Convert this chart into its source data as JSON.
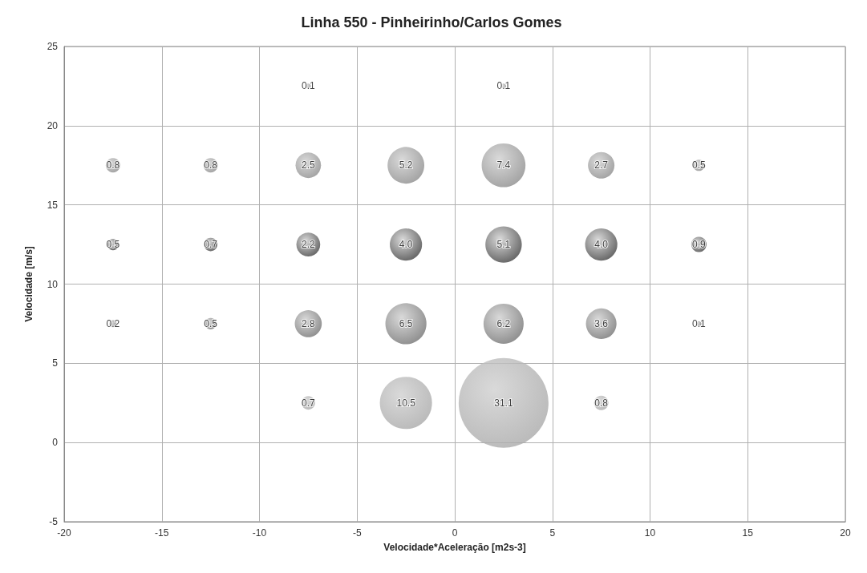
{
  "chart_data": {
    "type": "bubble",
    "title": "Linha 550 - Pinheirinho/Carlos Gomes",
    "xlabel": "Velocidade*Aceleração [m2s-3]",
    "ylabel": "Velocidade [m/s]",
    "x": [
      -7.5,
      2.5,
      -17.5,
      -12.5,
      -7.5,
      -2.5,
      2.5,
      7.5,
      12.5,
      -17.5,
      -12.5,
      -7.5,
      -2.5,
      2.5,
      7.5,
      12.5,
      -17.5,
      -12.5,
      -7.5,
      -2.5,
      2.5,
      7.5,
      12.5,
      -7.5,
      -2.5,
      2.5,
      7.5
    ],
    "values": [
      22.5,
      22.5,
      17.5,
      17.5,
      17.5,
      17.5,
      17.5,
      17.5,
      17.5,
      12.5,
      12.5,
      12.5,
      12.5,
      12.5,
      12.5,
      12.5,
      7.5,
      7.5,
      7.5,
      7.5,
      7.5,
      7.5,
      7.5,
      2.5,
      2.5,
      2.5,
      2.5
    ],
    "sizes": [
      0.1,
      0.1,
      0.8,
      0.8,
      2.5,
      5.2,
      7.4,
      2.7,
      0.5,
      0.5,
      0.7,
      2.2,
      4.0,
      5.1,
      4.0,
      0.9,
      0.2,
      0.5,
      2.8,
      6.5,
      6.2,
      3.6,
      0.1,
      0.7,
      10.5,
      31.1,
      0.8
    ],
    "value_labels": [
      "0.1",
      "0.1",
      "0.8",
      "0.8",
      "2.5",
      "5.2",
      "7.4",
      "2.7",
      "0.5",
      "0.5",
      "0.7",
      "2.2",
      "4.0",
      "5.1",
      "4.0",
      "0.9",
      "0.2",
      "0.5",
      "2.8",
      "6.5",
      "6.2",
      "3.6",
      "0.1",
      "0.7",
      "10.5",
      "31.1",
      "0.8"
    ],
    "colors": [
      "#8a8a8a",
      "#8a8a8a",
      "#8a8a8a",
      "#8a8a8a",
      "#8a8a8a",
      "#8a8a8a",
      "#8a8a8a",
      "#8a8a8a",
      "#8a8a8a",
      "#3c3c3c",
      "#3c3c3c",
      "#3c3c3c",
      "#3c3c3c",
      "#3c3c3c",
      "#3c3c3c",
      "#3c3c3c",
      "#707070",
      "#707070",
      "#707070",
      "#707070",
      "#707070",
      "#707070",
      "#707070",
      "#a8a8a8",
      "#a8a8a8",
      "#a8a8a8",
      "#a8a8a8"
    ],
    "xlim": [
      -20,
      20
    ],
    "xticks": [
      -20,
      -15,
      -10,
      -5,
      0,
      5,
      10,
      15,
      20
    ],
    "ylim": [
      -5,
      25
    ],
    "yticks": [
      -5,
      0,
      5,
      10,
      15,
      20,
      25
    ],
    "grid": true
  }
}
